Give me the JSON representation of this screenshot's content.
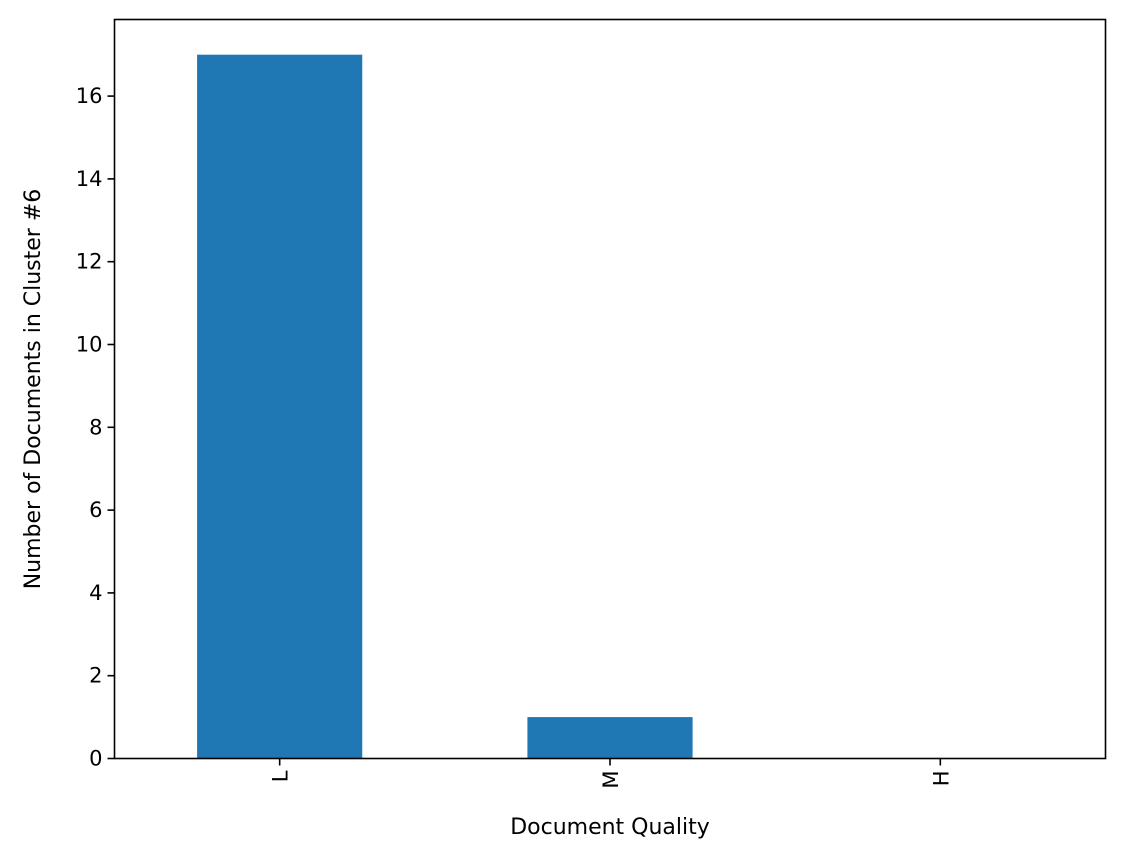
{
  "chart_data": {
    "type": "bar",
    "title": "",
    "xlabel": "Document Quality",
    "ylabel": "Number of Documents in Cluster #6",
    "categories": [
      "L",
      "M",
      "H"
    ],
    "values": [
      17,
      1,
      0
    ],
    "ylim": [
      0,
      17.85
    ],
    "yticks": [
      0,
      2,
      4,
      6,
      8,
      10,
      12,
      14,
      16
    ],
    "ytick_labels": [
      "0",
      "2",
      "4",
      "6",
      "8",
      "10",
      "12",
      "14",
      "16"
    ],
    "xtick_rotation": "vertical",
    "bar_color": "#1f77b4",
    "grid": false,
    "legend": "none"
  }
}
